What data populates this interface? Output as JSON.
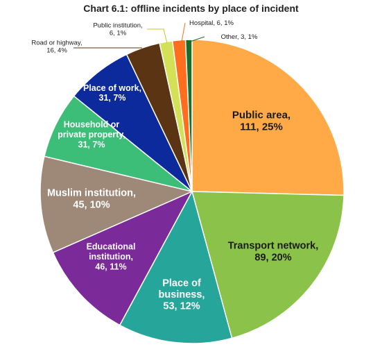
{
  "chart_data": {
    "type": "pie",
    "title": "Chart 6.1: offline incidents by place of incident",
    "slices": [
      {
        "name": "Public area",
        "value": 111,
        "percent": "25%",
        "lines": [
          "Public area,",
          "111, 25%"
        ],
        "color": "#FFAA47",
        "label_color": "#1a1a1a"
      },
      {
        "name": "Transport network",
        "value": 89,
        "percent": "20%",
        "lines": [
          "Transport network,",
          "89, 20%"
        ],
        "color": "#8BC34A",
        "label_color": "#1a1a1a"
      },
      {
        "name": "Place of business",
        "value": 53,
        "percent": "12%",
        "lines": [
          "Place of",
          "business,",
          "53, 12%"
        ],
        "color": "#26A69A",
        "label_color": "#ffffff"
      },
      {
        "name": "Educational institution",
        "value": 46,
        "percent": "11%",
        "lines": [
          "Educational",
          "institution,",
          "46, 11%"
        ],
        "color": "#7B2A9A",
        "label_color": "#ffffff"
      },
      {
        "name": "Muslim institution",
        "value": 45,
        "percent": "10%",
        "lines": [
          "Muslim institution,",
          "45, 10%"
        ],
        "color": "#9E8877",
        "label_color": "#ffffff"
      },
      {
        "name": "Household or private property",
        "value": 31,
        "percent": "7%",
        "lines": [
          "Household or",
          "private property,",
          "31, 7%"
        ],
        "color": "#3DBE78",
        "label_color": "#ffffff"
      },
      {
        "name": "Place of work",
        "value": 31,
        "percent": "7%",
        "lines": [
          "Place of work,",
          "31, 7%"
        ],
        "color": "#0D2A9C",
        "label_color": "#ffffff"
      },
      {
        "name": "Road or highway",
        "value": 16,
        "percent": "4%",
        "lines": [
          "Road or highway,",
          "16, 4%"
        ],
        "color": "#5B3513",
        "label_color": "#1a1a1a"
      },
      {
        "name": "Public institution",
        "value": 6,
        "percent": "1%",
        "lines": [
          "Public institution,",
          "6, 1%"
        ],
        "color": "#D4E157",
        "label_color": "#1a1a1a"
      },
      {
        "name": "Hospital",
        "value": 6,
        "percent": "1%",
        "lines": [
          "Hospital, 6, 1%"
        ],
        "color": "#FF6D1F",
        "label_color": "#1a1a1a"
      },
      {
        "name": "Other",
        "value": 3,
        "percent": "1%",
        "lines": [
          "Other, 3, 1%"
        ],
        "color": "#1B6B2A",
        "label_color": "#1a1a1a"
      }
    ]
  }
}
